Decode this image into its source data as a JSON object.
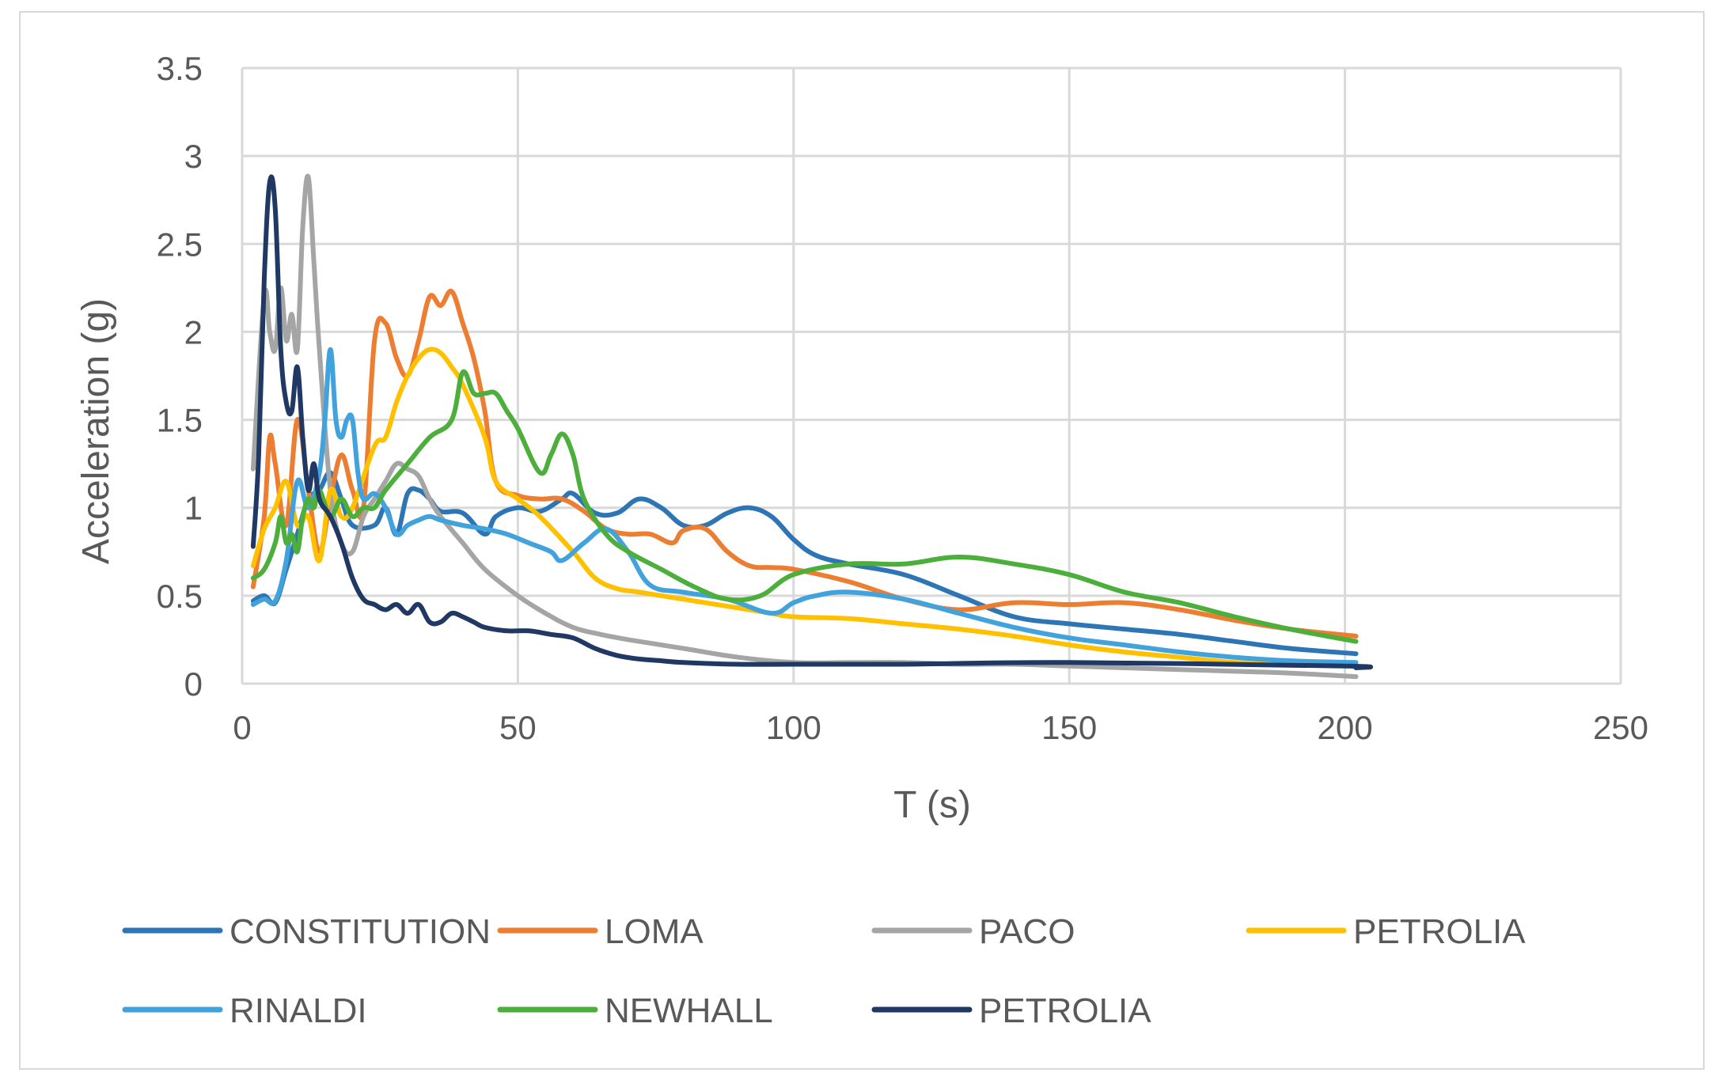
{
  "chart_data": {
    "type": "line",
    "title": "",
    "xlabel": "T (s)",
    "ylabel": "Acceleration (g)",
    "xlim": [
      0,
      250
    ],
    "ylim": [
      0,
      3.5
    ],
    "x_ticks": [
      0,
      50,
      100,
      150,
      200,
      250
    ],
    "y_ticks": [
      0,
      0.5,
      1,
      1.5,
      2,
      2.5,
      3,
      3.5
    ],
    "x_tick_labels": [
      "0",
      "50",
      "100",
      "150",
      "200",
      "250"
    ],
    "y_tick_labels": [
      "0",
      "0.5",
      "1",
      "1.5",
      "2",
      "2.5",
      "3",
      "3.5"
    ],
    "grid": true,
    "legend_position": "bottom",
    "series": [
      {
        "name": "CONSTITUTION",
        "color": "#2e75b6",
        "x": [
          2,
          4,
          6,
          8,
          10,
          12,
          14,
          16,
          18,
          20,
          24,
          26,
          28,
          30,
          32,
          34,
          36,
          40,
          44,
          46,
          50,
          54,
          58,
          60,
          64,
          68,
          72,
          76,
          80,
          84,
          88,
          92,
          96,
          100,
          104,
          110,
          120,
          130,
          140,
          150,
          160,
          170,
          180,
          190,
          202
        ],
        "y": [
          0.47,
          0.5,
          0.46,
          0.65,
          0.85,
          1.05,
          1.1,
          1.2,
          1.05,
          0.9,
          0.9,
          1.0,
          0.85,
          1.08,
          1.1,
          1.05,
          0.98,
          0.97,
          0.85,
          0.95,
          1.0,
          0.98,
          1.05,
          1.08,
          0.97,
          0.97,
          1.05,
          1.0,
          0.9,
          0.9,
          0.97,
          1.0,
          0.95,
          0.82,
          0.73,
          0.68,
          0.62,
          0.5,
          0.38,
          0.34,
          0.31,
          0.28,
          0.24,
          0.2,
          0.17
        ]
      },
      {
        "name": "LOMA",
        "color": "#ed7d31",
        "x": [
          2,
          4,
          5,
          6,
          8,
          10,
          12,
          14,
          16,
          18,
          20,
          22,
          24,
          26,
          28,
          30,
          32,
          34,
          36,
          38,
          40,
          42,
          44,
          46,
          50,
          54,
          58,
          62,
          66,
          70,
          74,
          78,
          80,
          84,
          88,
          92,
          96,
          100,
          110,
          120,
          130,
          140,
          150,
          160,
          170,
          180,
          190,
          202
        ],
        "y": [
          0.55,
          0.95,
          1.4,
          1.25,
          0.9,
          1.5,
          1.1,
          0.75,
          1.05,
          1.3,
          1.1,
          1.0,
          1.95,
          2.05,
          1.85,
          1.75,
          1.95,
          2.2,
          2.15,
          2.23,
          2.05,
          1.85,
          1.55,
          1.15,
          1.07,
          1.05,
          1.05,
          0.98,
          0.88,
          0.85,
          0.85,
          0.8,
          0.87,
          0.88,
          0.75,
          0.67,
          0.66,
          0.65,
          0.58,
          0.48,
          0.42,
          0.46,
          0.45,
          0.46,
          0.42,
          0.36,
          0.31,
          0.27
        ]
      },
      {
        "name": "PACO",
        "color": "#a5a5a5",
        "x": [
          2,
          4,
          5,
          6,
          7,
          8,
          9,
          10,
          11,
          12,
          13,
          14,
          16,
          18,
          20,
          22,
          24,
          26,
          28,
          30,
          32,
          34,
          36,
          40,
          44,
          50,
          55,
          60,
          65,
          70,
          80,
          90,
          100,
          110,
          120,
          130,
          140,
          150,
          160,
          170,
          180,
          190,
          202
        ],
        "y": [
          1.22,
          2.2,
          2.0,
          1.9,
          2.25,
          1.95,
          2.1,
          1.9,
          2.6,
          2.88,
          2.4,
          1.9,
          1.1,
          0.8,
          0.75,
          0.95,
          1.05,
          1.15,
          1.25,
          1.22,
          1.18,
          1.05,
          0.95,
          0.8,
          0.65,
          0.5,
          0.4,
          0.32,
          0.28,
          0.25,
          0.2,
          0.15,
          0.12,
          0.12,
          0.12,
          0.11,
          0.11,
          0.1,
          0.09,
          0.08,
          0.07,
          0.06,
          0.04
        ]
      },
      {
        "name": "PETROLIA",
        "color": "#ffc000",
        "x": [
          2,
          4,
          6,
          8,
          10,
          12,
          14,
          16,
          18,
          20,
          24,
          26,
          28,
          30,
          32,
          34,
          36,
          38,
          40,
          44,
          46,
          50,
          54,
          60,
          64,
          68,
          72,
          80,
          90,
          96,
          100,
          110,
          120,
          130,
          140,
          150,
          160,
          170,
          180,
          190,
          202
        ],
        "y": [
          0.67,
          0.88,
          1.0,
          1.15,
          0.9,
          0.95,
          0.7,
          1.1,
          0.95,
          1.0,
          1.35,
          1.4,
          1.6,
          1.75,
          1.85,
          1.9,
          1.88,
          1.8,
          1.7,
          1.4,
          1.15,
          1.05,
          0.95,
          0.75,
          0.6,
          0.54,
          0.52,
          0.48,
          0.43,
          0.4,
          0.38,
          0.37,
          0.34,
          0.31,
          0.27,
          0.22,
          0.18,
          0.15,
          0.12,
          0.11,
          0.1
        ]
      },
      {
        "name": "RINALDI",
        "color": "#41a2dc",
        "x": [
          2,
          4,
          6,
          8,
          10,
          12,
          14,
          15,
          16,
          17,
          18,
          19,
          20,
          21,
          22,
          24,
          26,
          28,
          30,
          32,
          34,
          36,
          40,
          44,
          48,
          52,
          56,
          58,
          62,
          66,
          70,
          74,
          80,
          88,
          96,
          100,
          104,
          110,
          120,
          130,
          140,
          150,
          160,
          170,
          180,
          190,
          202
        ],
        "y": [
          0.45,
          0.48,
          0.47,
          0.7,
          1.15,
          1.0,
          1.2,
          1.5,
          1.9,
          1.5,
          1.4,
          1.5,
          1.5,
          1.2,
          1.05,
          1.08,
          1.0,
          0.85,
          0.9,
          0.93,
          0.95,
          0.93,
          0.9,
          0.88,
          0.85,
          0.8,
          0.75,
          0.7,
          0.8,
          0.88,
          0.75,
          0.56,
          0.52,
          0.48,
          0.4,
          0.46,
          0.5,
          0.52,
          0.48,
          0.4,
          0.32,
          0.26,
          0.22,
          0.18,
          0.15,
          0.13,
          0.12
        ]
      },
      {
        "name": "NEWHALL",
        "color": "#4caf3b",
        "x": [
          2,
          4,
          6,
          7,
          8,
          9,
          10,
          11,
          12,
          13,
          14,
          16,
          18,
          20,
          22,
          24,
          26,
          30,
          34,
          38,
          40,
          42,
          44,
          46,
          48,
          50,
          54,
          56,
          58,
          60,
          62,
          66,
          70,
          76,
          82,
          88,
          94,
          100,
          110,
          120,
          130,
          140,
          150,
          160,
          170,
          180,
          190,
          202
        ],
        "y": [
          0.6,
          0.65,
          0.8,
          0.95,
          0.8,
          0.85,
          0.75,
          0.95,
          1.05,
          1.0,
          1.1,
          0.95,
          1.05,
          0.95,
          1.0,
          1.0,
          1.1,
          1.25,
          1.4,
          1.5,
          1.77,
          1.65,
          1.65,
          1.65,
          1.55,
          1.45,
          1.2,
          1.3,
          1.42,
          1.3,
          1.05,
          0.85,
          0.75,
          0.65,
          0.55,
          0.48,
          0.5,
          0.62,
          0.68,
          0.68,
          0.72,
          0.68,
          0.62,
          0.52,
          0.46,
          0.38,
          0.31,
          0.24
        ]
      },
      {
        "name": "PETROLIA",
        "color": "#203864",
        "x": [
          2,
          3,
          4,
          5,
          6,
          7,
          8,
          9,
          10,
          11,
          12,
          13,
          14,
          16,
          18,
          20,
          22,
          24,
          26,
          28,
          30,
          32,
          34,
          36,
          38,
          40,
          42,
          44,
          48,
          52,
          56,
          60,
          64,
          68,
          72,
          76,
          80,
          90,
          100,
          120,
          150,
          200,
          202
        ],
        "y": [
          0.78,
          1.3,
          2.3,
          2.85,
          2.7,
          1.9,
          1.6,
          1.55,
          1.8,
          1.4,
          1.1,
          1.25,
          1.05,
          0.95,
          0.8,
          0.6,
          0.48,
          0.45,
          0.42,
          0.45,
          0.4,
          0.45,
          0.35,
          0.35,
          0.4,
          0.38,
          0.35,
          0.32,
          0.3,
          0.3,
          0.28,
          0.26,
          0.2,
          0.16,
          0.14,
          0.13,
          0.12,
          0.11,
          0.11,
          0.11,
          0.12,
          0.1,
          0.09
        ]
      }
    ]
  }
}
